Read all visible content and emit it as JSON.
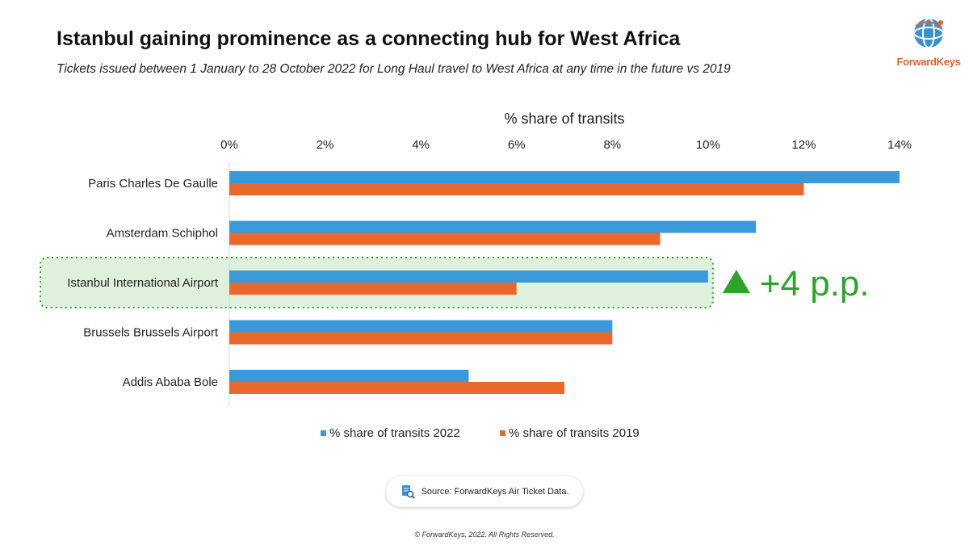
{
  "header": {
    "title": "Istanbul gaining prominence as a connecting hub for West Africa",
    "subtitle": "Tickets issued between 1 January to 28 October 2022 for Long Haul travel to West Africa at any time in the future vs 2019"
  },
  "logo": {
    "text": "ForwardKeys",
    "watermark": "ForwardKeys"
  },
  "chart_data": {
    "type": "bar",
    "orientation": "horizontal",
    "axis_title": "% share of transits",
    "x_ticks": [
      "0%",
      "2%",
      "4%",
      "6%",
      "8%",
      "10%",
      "12%",
      "14%"
    ],
    "xlim": [
      0,
      14
    ],
    "categories": [
      "Paris Charles De Gaulle",
      "Amsterdam Schiphol",
      "Istanbul International Airport",
      "Brussels Brussels Airport",
      "Addis Ababa Bole"
    ],
    "series": [
      {
        "name": "% share of transits 2022",
        "color": "#3a9ad9",
        "values": [
          14,
          11,
          10,
          8,
          5
        ]
      },
      {
        "name": "% share of transits 2019",
        "color": "#e8692b",
        "values": [
          12,
          9,
          6,
          8,
          7
        ]
      }
    ],
    "legend_position": "bottom",
    "highlight": {
      "category": "Istanbul International Airport",
      "annotation": "+4 p.p.",
      "color": "#2aa52a"
    }
  },
  "footer": {
    "source": "Source: ForwardKeys Air Ticket Data.",
    "copyright": "© ForwardKeys, 2022. All Rights Reserved."
  }
}
